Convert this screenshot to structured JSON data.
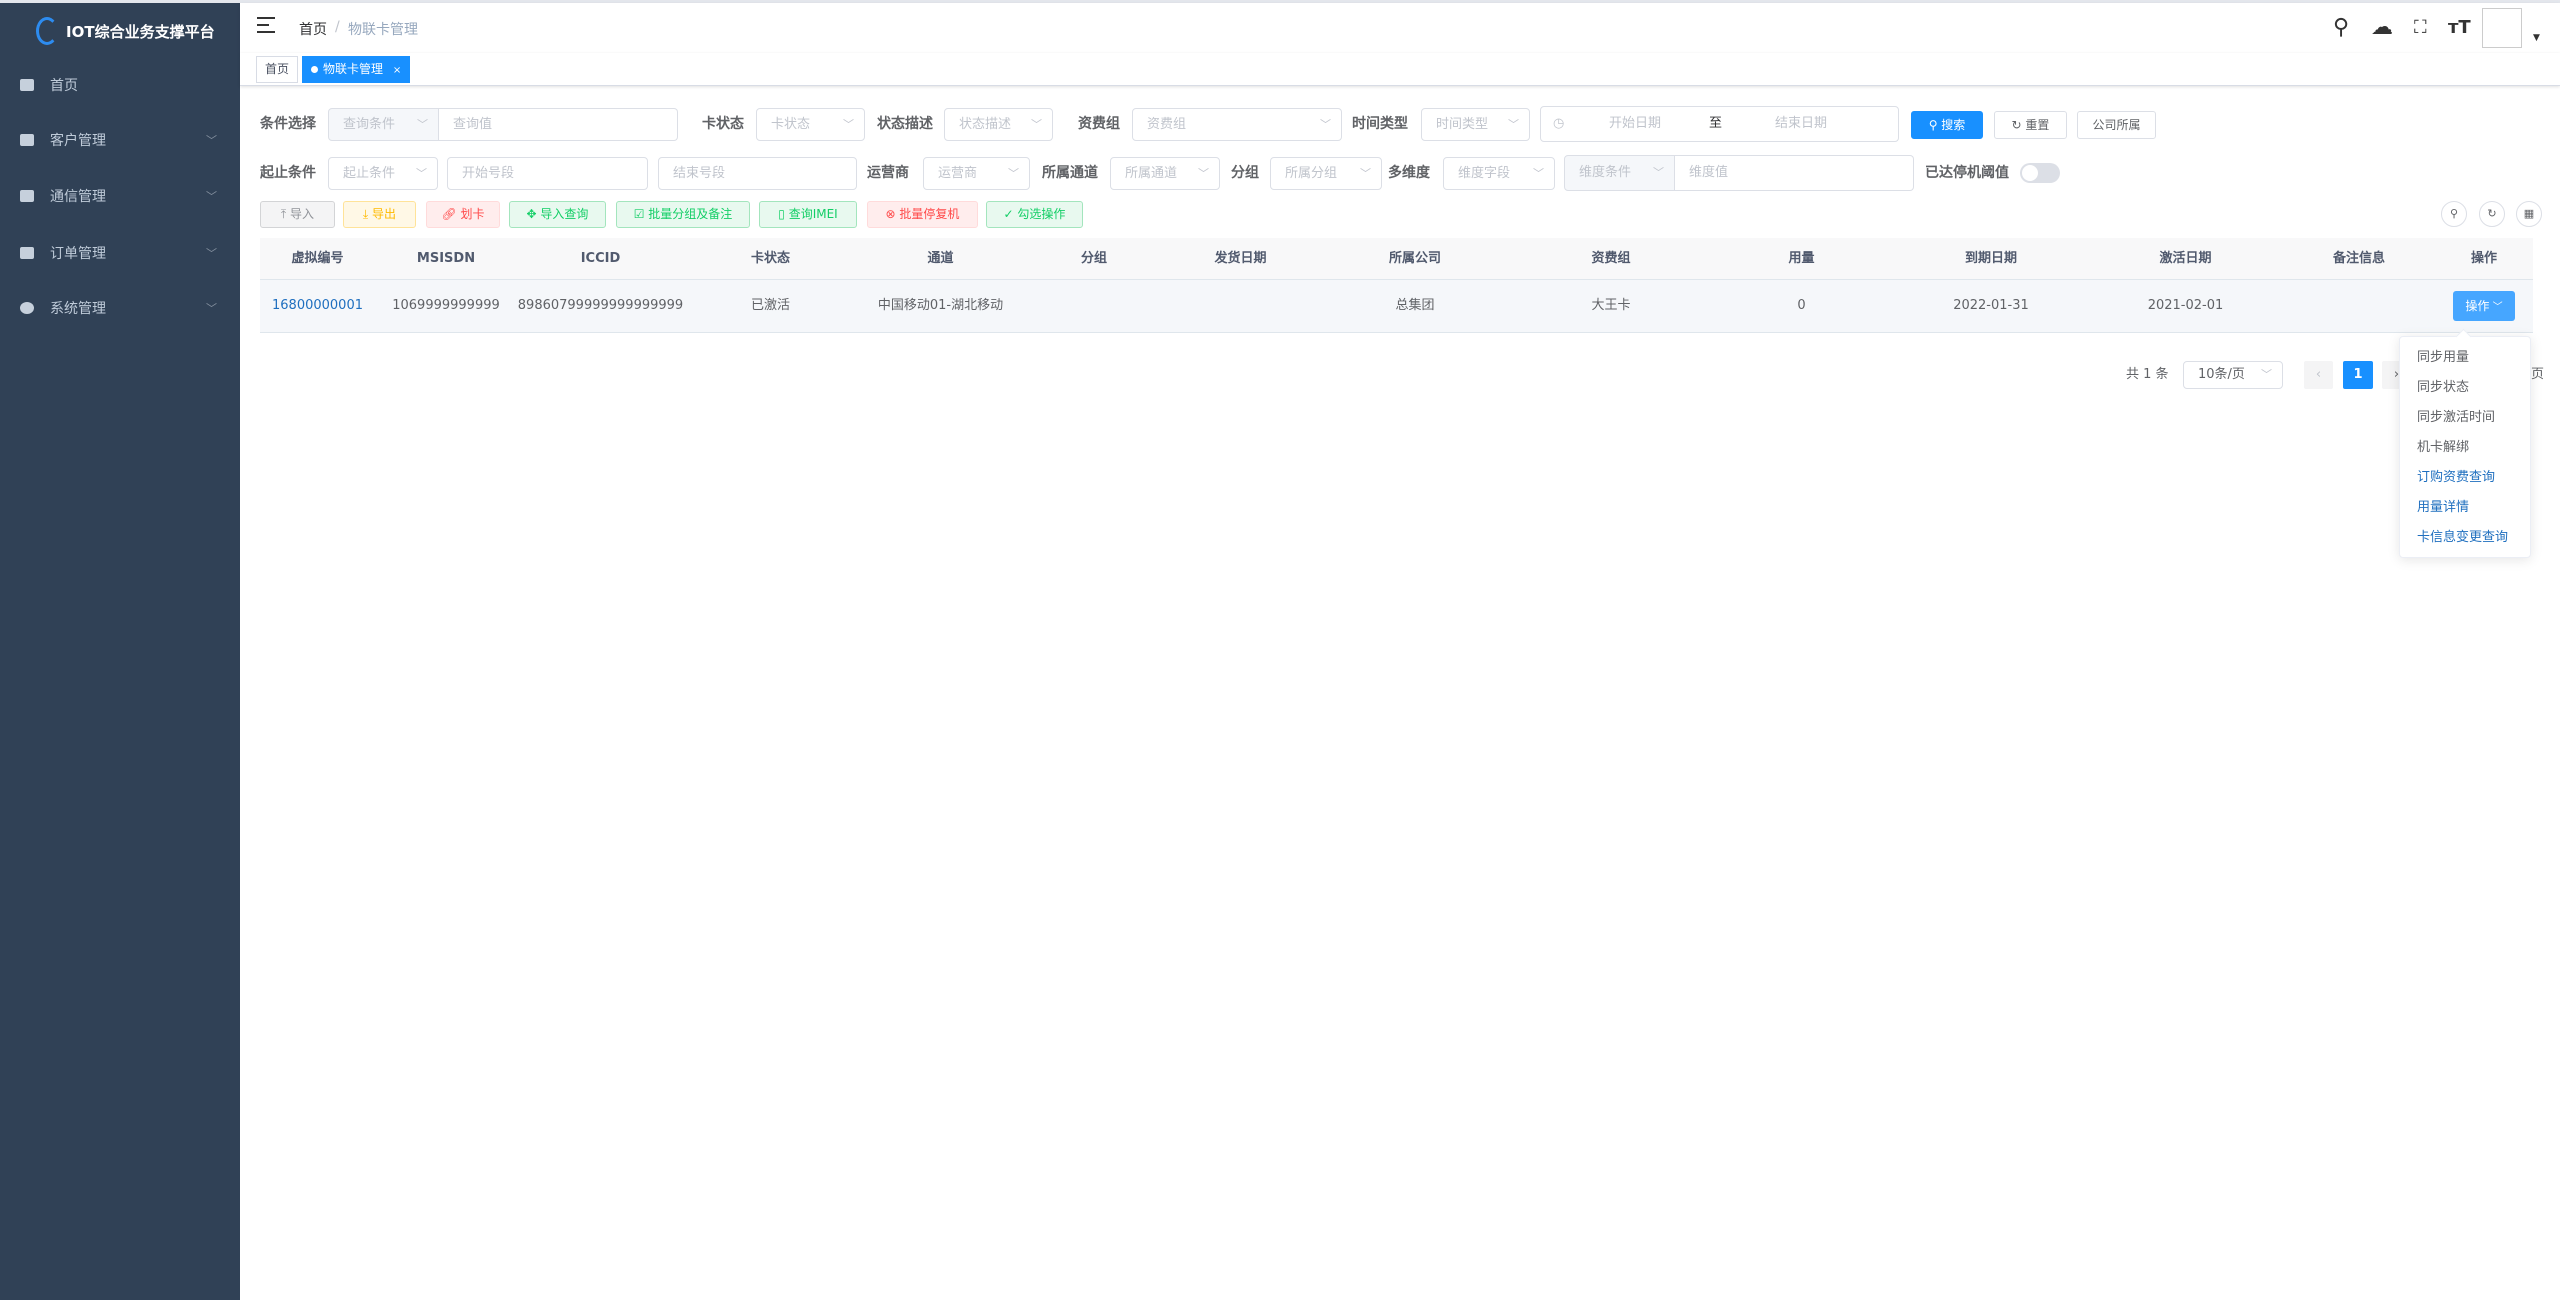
{
  "app": {
    "title": "IOT综合业务支撑平台"
  },
  "sidebar": {
    "items": [
      {
        "label": "首页",
        "icon": "dashboard-icon"
      },
      {
        "label": "客户管理",
        "icon": "monitor-icon"
      },
      {
        "label": "通信管理",
        "icon": "message-icon"
      },
      {
        "label": "订单管理",
        "icon": "chart-icon"
      },
      {
        "label": "系统管理",
        "icon": "gear-icon"
      }
    ]
  },
  "header": {
    "breadcrumb": [
      "首页",
      "物联卡管理"
    ],
    "separator": "/"
  },
  "tabs": [
    {
      "label": "首页"
    },
    {
      "label": "物联卡管理",
      "close": "×"
    }
  ],
  "filters": {
    "cond_label": "条件选择",
    "cond_select": "查询条件",
    "cond_value": "查询值",
    "card_status_label": "卡状态",
    "card_status": "卡状态",
    "status_desc_label": "状态描述",
    "status_desc": "状态描述",
    "tariff_label": "资费组",
    "tariff": "资费组",
    "time_type_label": "时间类型",
    "time_type": "时间类型",
    "start_date": "开始日期",
    "to": "至",
    "end_date": "结束日期",
    "search": "搜索",
    "reset": "重置",
    "company": "公司所属",
    "range_label": "起止条件",
    "range_select": "起止条件",
    "range_start": "开始号段",
    "range_end": "结束号段",
    "operator_label": "运营商",
    "operator": "运营商",
    "channel_label": "所属通道",
    "channel": "所属通道",
    "group_label": "分组",
    "group": "所属分组",
    "multi_label": "多维度",
    "multi_field": "维度字段",
    "multi_cond": "维度条件",
    "multi_value": "维度值",
    "threshold_label": "已达停机阈值",
    "threshold_on": false
  },
  "actions": [
    "导入",
    "导出",
    "划卡",
    "导入查询",
    "批量分组及备注",
    "查询IMEI",
    "批量停复机",
    "勾选操作"
  ],
  "table": {
    "columns": [
      "虚拟编号",
      "MSISDN",
      "ICCID",
      "卡状态",
      "通道",
      "分组",
      "发货日期",
      "所属公司",
      "资费组",
      "用量",
      "到期日期",
      "激活日期",
      "备注信息",
      "操作"
    ],
    "rows": [
      [
        "16800000001",
        "1069999999999",
        "89860799999999999999",
        "已激活",
        "中国移动01-湖北移动",
        "",
        "",
        "总集团",
        "大王卡",
        "0",
        "2022-01-31",
        "2021-02-01",
        "",
        "操作"
      ]
    ]
  },
  "pagination": {
    "total": "共 1 条",
    "page_size": "10条/页",
    "current": "1",
    "tail": "页"
  },
  "dropdown": [
    "同步用量",
    "同步状态",
    "同步激活时间",
    "机卡解绑",
    "订购资费查询",
    "用量详情",
    "卡信息变更查询"
  ],
  "colors": {
    "sidebar": "#304156",
    "primary": "#1890ff",
    "link": "#1f6fbf"
  }
}
